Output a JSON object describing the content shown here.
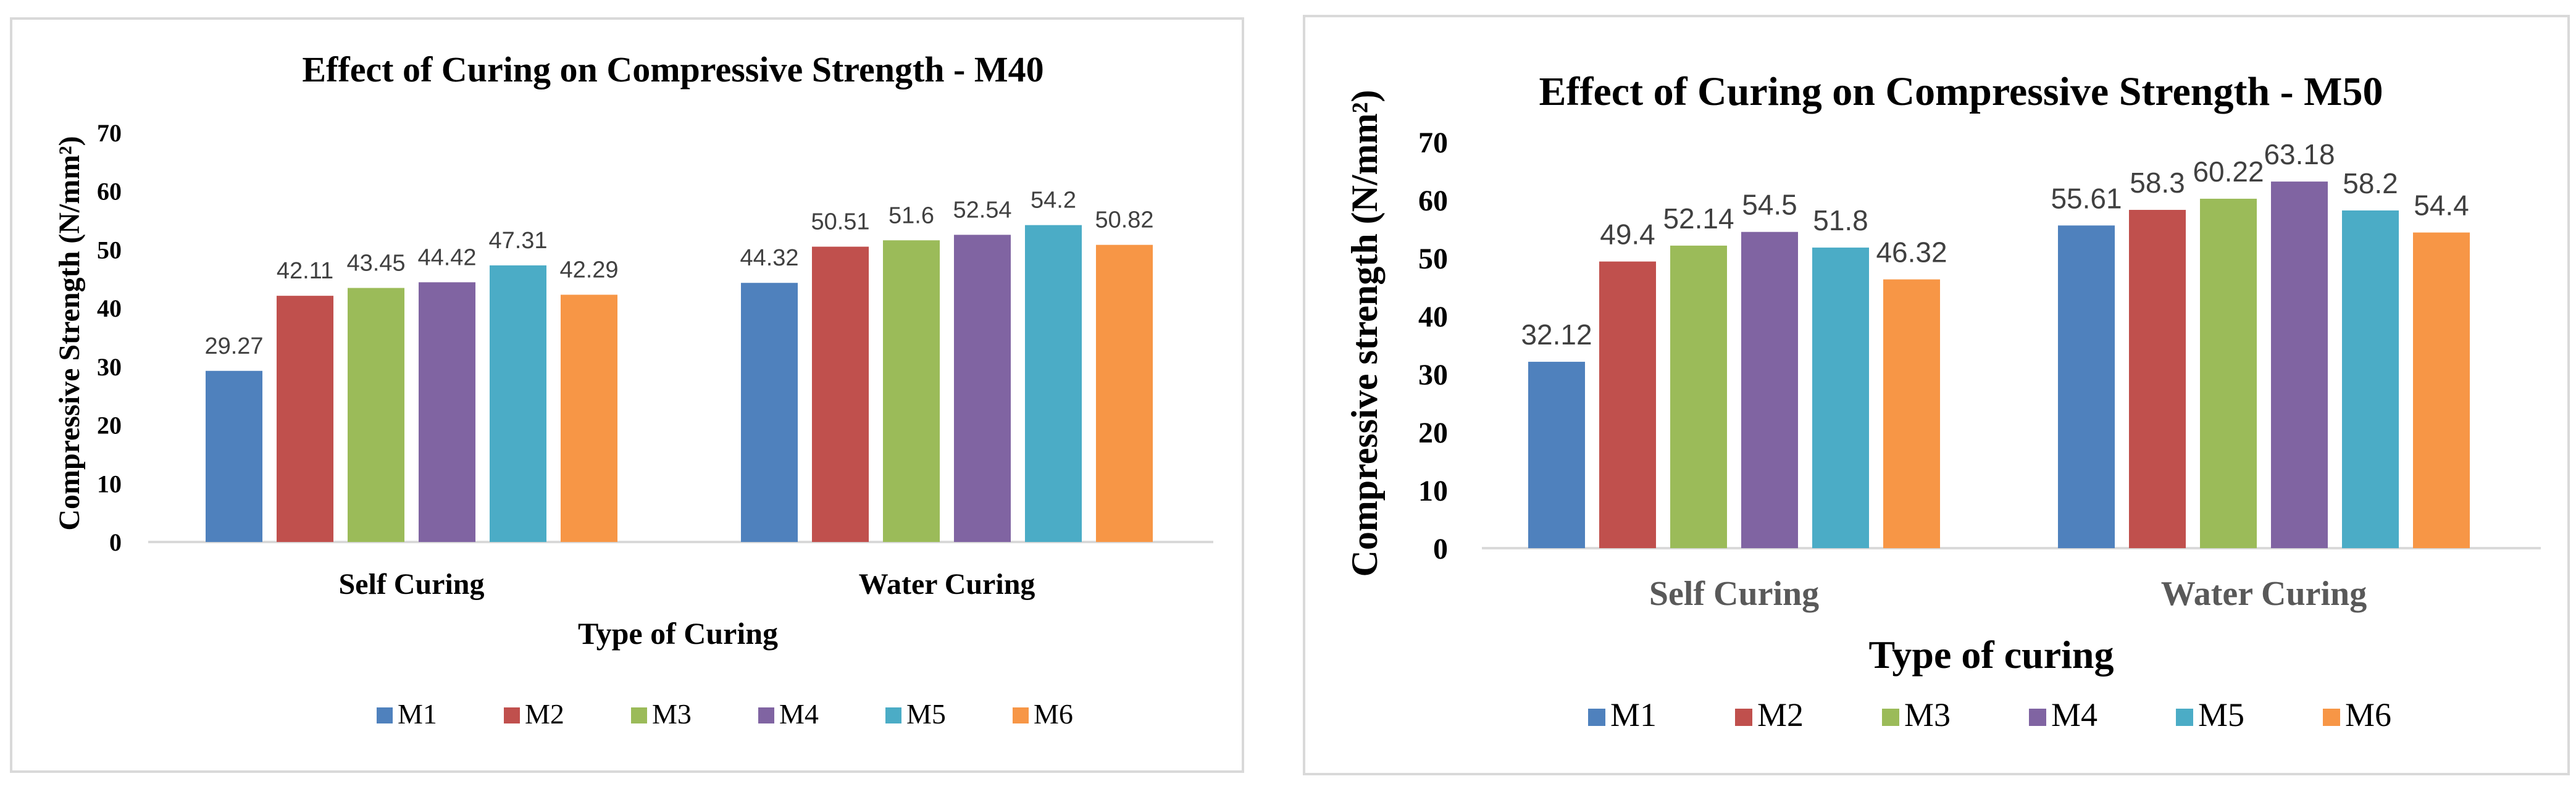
{
  "chart_data": [
    {
      "type": "bar",
      "title": "Effect of Curing on Compressive  Strength - M40",
      "xlabel": "Type of Curing",
      "ylabel": "Compressive Strength (N/mm²)",
      "categories": [
        "Self Curing",
        "Water Curing"
      ],
      "ylim": [
        0,
        70
      ],
      "yticks": [
        "0",
        "10",
        "20",
        "30",
        "40",
        "50",
        "60",
        "70"
      ],
      "series": [
        {
          "name": "M1",
          "values": [
            29.27,
            44.32
          ],
          "labels": [
            "29.27",
            "44.32"
          ]
        },
        {
          "name": "M2",
          "values": [
            42.11,
            50.51
          ],
          "labels": [
            "42.11",
            "50.51"
          ]
        },
        {
          "name": "M3",
          "values": [
            43.45,
            51.6
          ],
          "labels": [
            "43.45",
            "51.6"
          ]
        },
        {
          "name": "M4",
          "values": [
            44.42,
            52.54
          ],
          "labels": [
            "44.42",
            "52.54"
          ]
        },
        {
          "name": "M5",
          "values": [
            47.31,
            54.2
          ],
          "labels": [
            "47.31",
            "54.2"
          ]
        },
        {
          "name": "M6",
          "values": [
            42.29,
            50.82
          ],
          "labels": [
            "42.29",
            "50.82"
          ]
        }
      ],
      "legend": "bottom"
    },
    {
      "type": "bar",
      "title": "Effect of Curing on Compressive Strength - M50",
      "xlabel": "Type of curing",
      "ylabel": "Compressive strength (N/mm²)",
      "categories": [
        "Self Curing",
        "Water Curing"
      ],
      "ylim": [
        0,
        70
      ],
      "yticks": [
        "0",
        "10",
        "20",
        "30",
        "40",
        "50",
        "60",
        "70"
      ],
      "series": [
        {
          "name": "M1",
          "values": [
            32.12,
            55.61
          ],
          "labels": [
            "32.12",
            "55.61"
          ]
        },
        {
          "name": "M2",
          "values": [
            49.4,
            58.3
          ],
          "labels": [
            "49.4",
            "58.3"
          ]
        },
        {
          "name": "M3",
          "values": [
            52.14,
            60.22
          ],
          "labels": [
            "52.14",
            "60.22"
          ]
        },
        {
          "name": "M4",
          "values": [
            54.5,
            63.18
          ],
          "labels": [
            "54.5",
            "63.18"
          ]
        },
        {
          "name": "M5",
          "values": [
            51.8,
            58.2
          ],
          "labels": [
            "51.8",
            "58.2"
          ]
        },
        {
          "name": "M6",
          "values": [
            46.32,
            54.4
          ],
          "labels": [
            "46.32",
            "54.4"
          ]
        }
      ],
      "legend": "bottom"
    }
  ],
  "colors": {
    "M1": "#4F81BD",
    "M2": "#C0504D",
    "M3": "#9BBB59",
    "M4": "#8064A2",
    "M5": "#4BACC6",
    "M6": "#F79646"
  }
}
